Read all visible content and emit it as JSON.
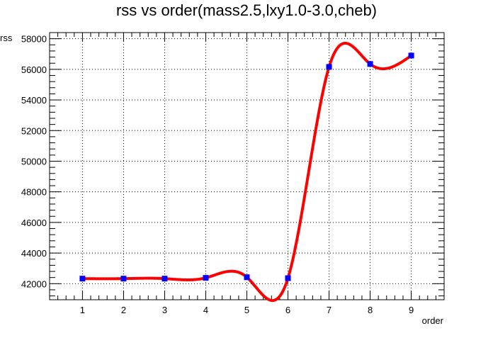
{
  "chart_data": {
    "type": "line",
    "title": "rss vs order(mass2.5,lxy1.0-3.0,cheb)",
    "xlabel": "order",
    "ylabel": "rss",
    "xlim": [
      0.2,
      9.8
    ],
    "ylim": [
      40950,
      58400
    ],
    "grid": true,
    "x_ticks": [
      1,
      2,
      3,
      4,
      5,
      6,
      7,
      8,
      9
    ],
    "x_tick_labels": [
      "1",
      "2",
      "3",
      "4",
      "5",
      "6",
      "7",
      "8",
      "9"
    ],
    "y_ticks": [
      42000,
      44000,
      46000,
      48000,
      50000,
      52000,
      54000,
      56000,
      58000
    ],
    "y_tick_labels": [
      "42000",
      "44000",
      "46000",
      "48000",
      "50000",
      "52000",
      "54000",
      "56000",
      "58000"
    ],
    "series": [
      {
        "x": [
          1,
          2,
          3,
          4,
          5,
          6,
          7,
          8,
          9
        ],
        "values": [
          42330,
          42330,
          42330,
          42380,
          42420,
          42360,
          56160,
          56350,
          56900
        ],
        "marker": "square",
        "marker_color": "#0000ff",
        "line": "smooth-spline",
        "line_color": "#ff0000"
      }
    ]
  }
}
